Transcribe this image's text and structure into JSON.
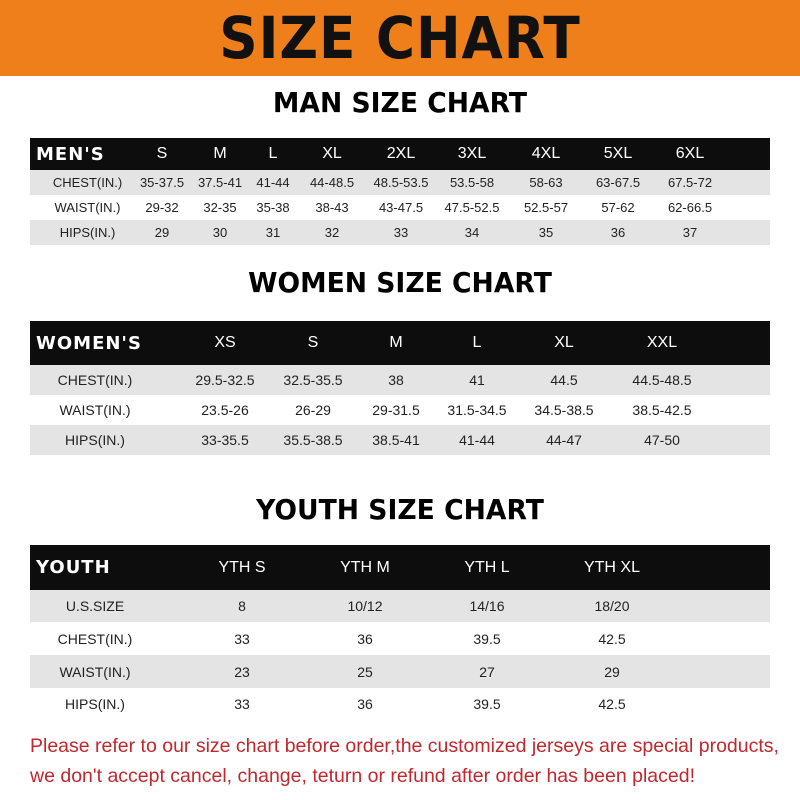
{
  "title": "SIZE CHART",
  "men": {
    "title": "MAN SIZE CHART",
    "header": "MEN'S",
    "sizes": [
      "S",
      "M",
      "L",
      "XL",
      "2XL",
      "3XL",
      "4XL",
      "5XL",
      "6XL"
    ],
    "rows": [
      {
        "label": "CHEST(IN.)",
        "values": [
          "35-37.5",
          "37.5-41",
          "41-44",
          "44-48.5",
          "48.5-53.5",
          "53.5-58",
          "58-63",
          "63-67.5",
          "67.5-72"
        ]
      },
      {
        "label": "WAIST(IN.)",
        "values": [
          "29-32",
          "32-35",
          "35-38",
          "38-43",
          "43-47.5",
          "47.5-52.5",
          "52.5-57",
          "57-62",
          "62-66.5"
        ]
      },
      {
        "label": "HIPS(IN.)",
        "values": [
          "29",
          "30",
          "31",
          "32",
          "33",
          "34",
          "35",
          "36",
          "37"
        ]
      }
    ]
  },
  "women": {
    "title": "WOMEN SIZE CHART",
    "header": "WOMEN'S",
    "sizes": [
      "XS",
      "S",
      "M",
      "L",
      "XL",
      "XXL"
    ],
    "rows": [
      {
        "label": "CHEST(IN.)",
        "values": [
          "29.5-32.5",
          "32.5-35.5",
          "38",
          "41",
          "44.5",
          "44.5-48.5"
        ]
      },
      {
        "label": "WAIST(IN.)",
        "values": [
          "23.5-26",
          "26-29",
          "29-31.5",
          "31.5-34.5",
          "34.5-38.5",
          "38.5-42.5"
        ]
      },
      {
        "label": "HIPS(IN.)",
        "values": [
          "33-35.5",
          "35.5-38.5",
          "38.5-41",
          "41-44",
          "44-47",
          "47-50"
        ]
      }
    ]
  },
  "youth": {
    "title": "YOUTH SIZE CHART",
    "header": "YOUTH",
    "sizes": [
      "YTH S",
      "YTH M",
      "YTH L",
      "YTH XL"
    ],
    "rows": [
      {
        "label": "U.S.SIZE",
        "values": [
          "8",
          "10/12",
          "14/16",
          "18/20"
        ]
      },
      {
        "label": "CHEST(IN.)",
        "values": [
          "33",
          "36",
          "39.5",
          "42.5"
        ]
      },
      {
        "label": "WAIST(IN.)",
        "values": [
          "23",
          "25",
          "27",
          "29"
        ]
      },
      {
        "label": "HIPS(IN.)",
        "values": [
          "33",
          "36",
          "39.5",
          "42.5"
        ]
      }
    ]
  },
  "notice": {
    "line1": "Please refer to our size chart before order,the customized jerseys are special products,",
    "line2": "we don't accept cancel, change, teturn or refund after order has been placed!"
  },
  "colors": {
    "banner": "#ef7f1a",
    "header_row": "#0d0d0d",
    "stripe": "#e4e4e4",
    "notice": "#c0282d"
  }
}
